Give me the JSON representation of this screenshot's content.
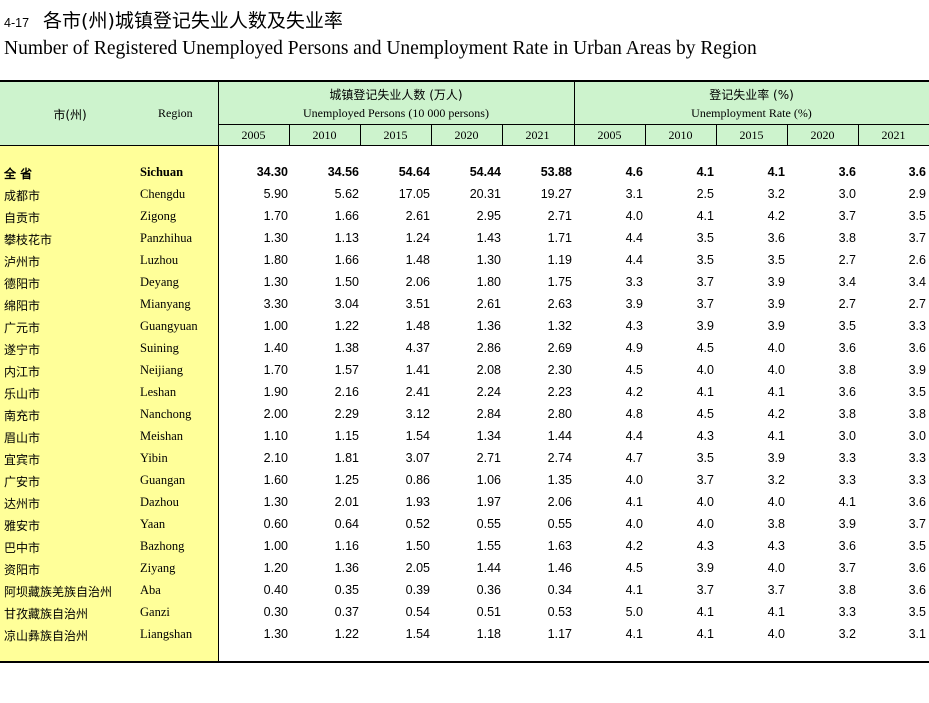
{
  "title": {
    "number": "4-17",
    "cn": "各市(州)城镇登记失业人数及失业率",
    "en": "Number of Registered Unemployed Persons and Unemployment Rate in Urban Areas by Region"
  },
  "header": {
    "city_cn": "市(州)",
    "region_en": "Region",
    "group1_cn": "城镇登记失业人数 (万人)",
    "group1_en": "Unemployed Persons (10 000 persons)",
    "group2_cn": "登记失业率 (%)",
    "group2_en": "Unemployment Rate (%)",
    "years": [
      "2005",
      "2010",
      "2015",
      "2020",
      "2021"
    ]
  },
  "rows": [
    {
      "cn": "全 省",
      "en": "Sichuan",
      "persons": [
        "34.30",
        "34.56",
        "54.64",
        "54.44",
        "53.88"
      ],
      "rate": [
        "4.6",
        "4.1",
        "4.1",
        "3.6",
        "3.6"
      ]
    },
    {
      "cn": "成都市",
      "en": "Chengdu",
      "persons": [
        "5.90",
        "5.62",
        "17.05",
        "20.31",
        "19.27"
      ],
      "rate": [
        "3.1",
        "2.5",
        "3.2",
        "3.0",
        "2.9"
      ]
    },
    {
      "cn": "自贡市",
      "en": "Zigong",
      "persons": [
        "1.70",
        "1.66",
        "2.61",
        "2.95",
        "2.71"
      ],
      "rate": [
        "4.0",
        "4.1",
        "4.2",
        "3.7",
        "3.5"
      ]
    },
    {
      "cn": "攀枝花市",
      "en": "Panzhihua",
      "persons": [
        "1.30",
        "1.13",
        "1.24",
        "1.43",
        "1.71"
      ],
      "rate": [
        "4.4",
        "3.5",
        "3.6",
        "3.8",
        "3.7"
      ]
    },
    {
      "cn": "泸州市",
      "en": "Luzhou",
      "persons": [
        "1.80",
        "1.66",
        "1.48",
        "1.30",
        "1.19"
      ],
      "rate": [
        "4.4",
        "3.5",
        "3.5",
        "2.7",
        "2.6"
      ]
    },
    {
      "cn": "德阳市",
      "en": "Deyang",
      "persons": [
        "1.30",
        "1.50",
        "2.06",
        "1.80",
        "1.75"
      ],
      "rate": [
        "3.3",
        "3.7",
        "3.9",
        "3.4",
        "3.4"
      ]
    },
    {
      "cn": "绵阳市",
      "en": "Mianyang",
      "persons": [
        "3.30",
        "3.04",
        "3.51",
        "2.61",
        "2.63"
      ],
      "rate": [
        "3.9",
        "3.7",
        "3.9",
        "2.7",
        "2.7"
      ]
    },
    {
      "cn": "广元市",
      "en": "Guangyuan",
      "persons": [
        "1.00",
        "1.22",
        "1.48",
        "1.36",
        "1.32"
      ],
      "rate": [
        "4.3",
        "3.9",
        "3.9",
        "3.5",
        "3.3"
      ]
    },
    {
      "cn": "遂宁市",
      "en": "Suining",
      "persons": [
        "1.40",
        "1.38",
        "4.37",
        "2.86",
        "2.69"
      ],
      "rate": [
        "4.9",
        "4.5",
        "4.0",
        "3.6",
        "3.6"
      ]
    },
    {
      "cn": "内江市",
      "en": "Neijiang",
      "persons": [
        "1.70",
        "1.57",
        "1.41",
        "2.08",
        "2.30"
      ],
      "rate": [
        "4.5",
        "4.0",
        "4.0",
        "3.8",
        "3.9"
      ]
    },
    {
      "cn": "乐山市",
      "en": "Leshan",
      "persons": [
        "1.90",
        "2.16",
        "2.41",
        "2.24",
        "2.23"
      ],
      "rate": [
        "4.2",
        "4.1",
        "4.1",
        "3.6",
        "3.5"
      ]
    },
    {
      "cn": "南充市",
      "en": "Nanchong",
      "persons": [
        "2.00",
        "2.29",
        "3.12",
        "2.84",
        "2.80"
      ],
      "rate": [
        "4.8",
        "4.5",
        "4.2",
        "3.8",
        "3.8"
      ]
    },
    {
      "cn": "眉山市",
      "en": "Meishan",
      "persons": [
        "1.10",
        "1.15",
        "1.54",
        "1.34",
        "1.44"
      ],
      "rate": [
        "4.4",
        "4.3",
        "4.1",
        "3.0",
        "3.0"
      ]
    },
    {
      "cn": "宜宾市",
      "en": "Yibin",
      "persons": [
        "2.10",
        "1.81",
        "3.07",
        "2.71",
        "2.74"
      ],
      "rate": [
        "4.7",
        "3.5",
        "3.9",
        "3.3",
        "3.3"
      ]
    },
    {
      "cn": "广安市",
      "en": "Guangan",
      "persons": [
        "1.60",
        "1.25",
        "0.86",
        "1.06",
        "1.35"
      ],
      "rate": [
        "4.0",
        "3.7",
        "3.2",
        "3.3",
        "3.3"
      ]
    },
    {
      "cn": "达州市",
      "en": "Dazhou",
      "persons": [
        "1.30",
        "2.01",
        "1.93",
        "1.97",
        "2.06"
      ],
      "rate": [
        "4.1",
        "4.0",
        "4.0",
        "4.1",
        "3.6"
      ]
    },
    {
      "cn": "雅安市",
      "en": "Yaan",
      "persons": [
        "0.60",
        "0.64",
        "0.52",
        "0.55",
        "0.55"
      ],
      "rate": [
        "4.0",
        "4.0",
        "3.8",
        "3.9",
        "3.7"
      ]
    },
    {
      "cn": "巴中市",
      "en": "Bazhong",
      "persons": [
        "1.00",
        "1.16",
        "1.50",
        "1.55",
        "1.63"
      ],
      "rate": [
        "4.2",
        "4.3",
        "4.3",
        "3.6",
        "3.5"
      ]
    },
    {
      "cn": "资阳市",
      "en": "Ziyang",
      "persons": [
        "1.20",
        "1.36",
        "2.05",
        "1.44",
        "1.46"
      ],
      "rate": [
        "4.5",
        "3.9",
        "4.0",
        "3.7",
        "3.6"
      ]
    },
    {
      "cn": "阿坝藏族羌族自治州",
      "en": "Aba",
      "persons": [
        "0.40",
        "0.35",
        "0.39",
        "0.36",
        "0.34"
      ],
      "rate": [
        "4.1",
        "3.7",
        "3.7",
        "3.8",
        "3.6"
      ]
    },
    {
      "cn": "甘孜藏族自治州",
      "en": "Ganzi",
      "persons": [
        "0.30",
        "0.37",
        "0.54",
        "0.51",
        "0.53"
      ],
      "rate": [
        "5.0",
        "4.1",
        "4.1",
        "3.3",
        "3.5"
      ]
    },
    {
      "cn": "凉山彝族自治州",
      "en": "Liangshan",
      "persons": [
        "1.30",
        "1.22",
        "1.54",
        "1.18",
        "1.17"
      ],
      "rate": [
        "4.1",
        "4.1",
        "4.0",
        "3.2",
        "3.1"
      ]
    }
  ],
  "colors": {
    "header_bg": "#cdf3cd",
    "region_col_bg": "#ffff99"
  }
}
